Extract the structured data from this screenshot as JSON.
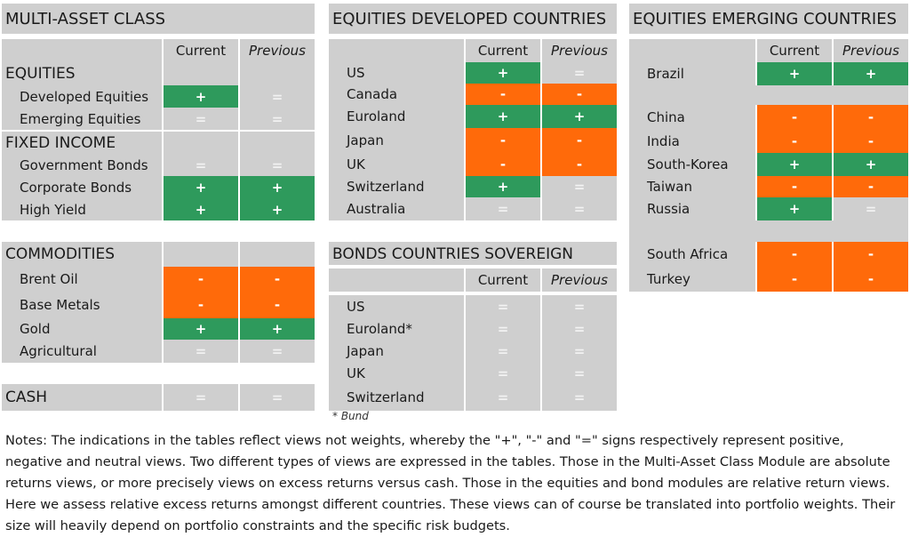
{
  "col_current": "Current",
  "col_previous": "Previous",
  "multi": {
    "title": "MULTI-ASSET CLASS",
    "equities": "EQUITIES",
    "developed_equities": {
      "label": "Developed Equities",
      "current": "+",
      "previous": "="
    },
    "emerging_equities": {
      "label": "Emerging Equities",
      "current": "=",
      "previous": "="
    },
    "fixed_income": "FIXED INCOME",
    "government_bonds": {
      "label": "Government Bonds",
      "current": "=",
      "previous": "="
    },
    "corporate_bonds": {
      "label": "Corporate Bonds",
      "current": "+",
      "previous": "+"
    },
    "high_yield": {
      "label": "High Yield",
      "current": "+",
      "previous": "+"
    },
    "commodities": "COMMODITIES",
    "brent_oil": {
      "label": "Brent Oil",
      "current": "-",
      "previous": "-"
    },
    "base_metals": {
      "label": "Base Metals",
      "current": "-",
      "previous": "-"
    },
    "gold": {
      "label": "Gold",
      "current": "+",
      "previous": "+"
    },
    "agricultural": {
      "label": "Agricultural",
      "current": "=",
      "previous": "="
    },
    "cash": {
      "label": "CASH",
      "current": "=",
      "previous": "="
    }
  },
  "developed": {
    "title": "EQUITIES DEVELOPED COUNTRIES",
    "rows": [
      {
        "label": "US",
        "current": "+",
        "previous": "="
      },
      {
        "label": "Canada",
        "current": "-",
        "previous": "-"
      },
      {
        "label": "Euroland",
        "current": "+",
        "previous": "+"
      },
      {
        "label": "Japan",
        "current": "-",
        "previous": "-"
      },
      {
        "label": "UK",
        "current": "-",
        "previous": "-"
      },
      {
        "label": "Switzerland",
        "current": "+",
        "previous": "="
      },
      {
        "label": "Australia",
        "current": "=",
        "previous": "="
      }
    ]
  },
  "bonds": {
    "title": "BONDS COUNTRIES SOVEREIGN",
    "rows": [
      {
        "label": "US",
        "current": "=",
        "previous": "="
      },
      {
        "label": "Euroland*",
        "current": "=",
        "previous": "="
      },
      {
        "label": "Japan",
        "current": "=",
        "previous": "="
      },
      {
        "label": "UK",
        "current": "=",
        "previous": "="
      },
      {
        "label": "Switzerland",
        "current": "=",
        "previous": "="
      }
    ],
    "footnote": "* Bund"
  },
  "emerging": {
    "title": "EQUITIES EMERGING COUNTRIES",
    "rows": [
      {
        "label": "Brazil",
        "current": "+",
        "previous": "+"
      },
      {
        "label": "China",
        "current": "-",
        "previous": "-"
      },
      {
        "label": "India",
        "current": "-",
        "previous": "-"
      },
      {
        "label": "South-Korea",
        "current": "+",
        "previous": "+"
      },
      {
        "label": "Taiwan",
        "current": "-",
        "previous": "-"
      },
      {
        "label": "Russia",
        "current": "+",
        "previous": "="
      },
      {
        "label": "South Africa",
        "current": "-",
        "previous": "-"
      },
      {
        "label": "Turkey",
        "current": "-",
        "previous": "-"
      }
    ]
  },
  "notes": "Notes: The indications in the tables reflect views not weights, whereby the \"+\", \"-\" and \"=\" signs respectively represent positive, negative and neutral views. Two different types of views are expressed in the tables. Those in the Multi-Asset Class Module are absolute returns views, or more precisely views on excess returns versus cash. Those in the equities and bond modules are relative return views. Here we assess relative excess returns amongst different countries. These views can of course be translated into portfolio weights. Their size will heavily depend on portfolio constraints and the specific risk budgets.",
  "colors": {
    "positive": "#2e9a5c",
    "negative": "#ff6a0a",
    "neutral": "#cfcfcf"
  }
}
